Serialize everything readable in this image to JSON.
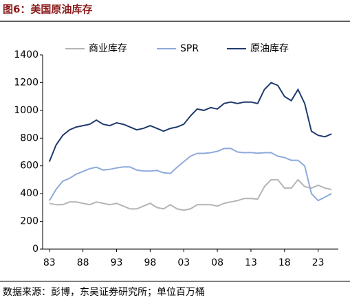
{
  "chart_data": {
    "type": "line",
    "title": "图6：美国原油库存",
    "source": "数据来源：彭博，东吴证券研究所；单位百万桶",
    "x": [
      1983,
      1984,
      1985,
      1986,
      1987,
      1988,
      1989,
      1990,
      1991,
      1992,
      1993,
      1994,
      1995,
      1996,
      1997,
      1998,
      1999,
      2000,
      2001,
      2002,
      2003,
      2004,
      2005,
      2006,
      2007,
      2008,
      2009,
      2010,
      2011,
      2012,
      2013,
      2014,
      2015,
      2016,
      2017,
      2018,
      2019,
      2020,
      2021,
      2022,
      2023,
      2024,
      2025
    ],
    "series": [
      {
        "name": "商业库存",
        "color": "#b4b4b4",
        "values": [
          330,
          320,
          320,
          340,
          340,
          330,
          320,
          340,
          330,
          320,
          330,
          310,
          290,
          290,
          310,
          330,
          300,
          290,
          320,
          290,
          280,
          290,
          320,
          320,
          320,
          310,
          330,
          340,
          350,
          365,
          365,
          360,
          450,
          500,
          500,
          440,
          440,
          500,
          450,
          440,
          460,
          440,
          430
        ]
      },
      {
        "name": "SPR",
        "color": "#8eaadb",
        "values": [
          350,
          430,
          490,
          510,
          540,
          560,
          580,
          590,
          570,
          575,
          585,
          592,
          592,
          570,
          563,
          563,
          567,
          550,
          545,
          590,
          630,
          670,
          690,
          690,
          695,
          705,
          725,
          726,
          700,
          695,
          696,
          691,
          695,
          695,
          670,
          660,
          640,
          640,
          600,
          400,
          350,
          375,
          400
        ]
      },
      {
        "name": "原油库存",
        "color": "#1f3a6e",
        "values": [
          630,
          750,
          820,
          860,
          880,
          890,
          900,
          930,
          900,
          890,
          910,
          900,
          880,
          860,
          870,
          890,
          870,
          850,
          870,
          880,
          900,
          960,
          1010,
          1000,
          1020,
          1010,
          1050,
          1060,
          1050,
          1060,
          1060,
          1050,
          1150,
          1200,
          1180,
          1100,
          1070,
          1150,
          1050,
          850,
          820,
          810,
          830
        ]
      }
    ],
    "xlim": [
      1982,
      2026
    ],
    "xticks": [
      {
        "value": 1983,
        "label": "83"
      },
      {
        "value": 1988,
        "label": "88"
      },
      {
        "value": 1993,
        "label": "93"
      },
      {
        "value": 1998,
        "label": "98"
      },
      {
        "value": 2003,
        "label": "03"
      },
      {
        "value": 2008,
        "label": "08"
      },
      {
        "value": 2013,
        "label": "13"
      },
      {
        "value": 2018,
        "label": "18"
      },
      {
        "value": 2023,
        "label": "23"
      }
    ],
    "ylim": [
      0,
      1400
    ],
    "yticks": [
      0,
      200,
      400,
      600,
      800,
      1000,
      1200,
      1400
    ],
    "grid": false
  }
}
